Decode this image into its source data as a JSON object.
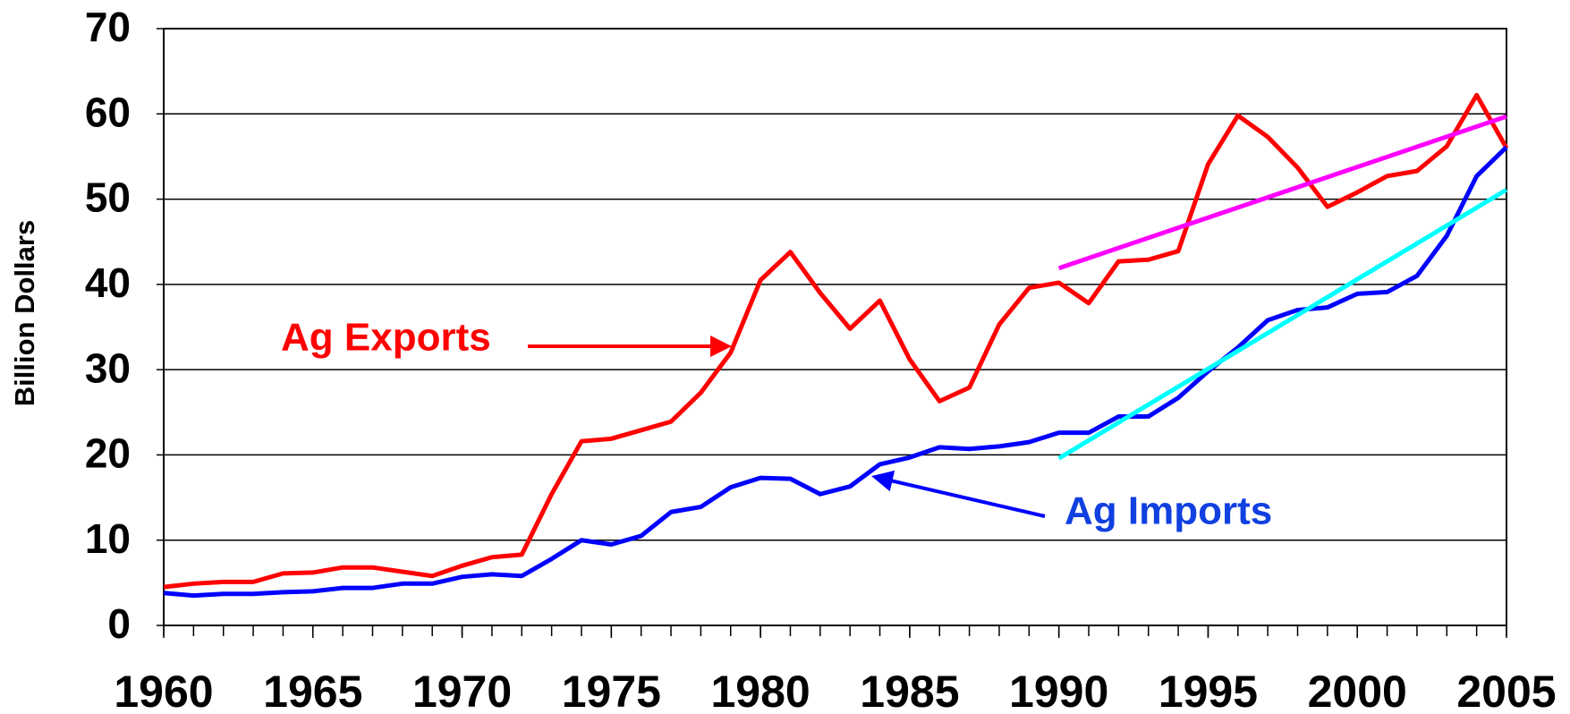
{
  "chart_data": {
    "type": "line",
    "y_label": "Billion Dollars",
    "x": [
      1960,
      1961,
      1962,
      1963,
      1964,
      1965,
      1966,
      1967,
      1968,
      1969,
      1970,
      1971,
      1972,
      1973,
      1974,
      1975,
      1976,
      1977,
      1978,
      1979,
      1980,
      1981,
      1982,
      1983,
      1984,
      1985,
      1986,
      1987,
      1988,
      1989,
      1990,
      1991,
      1992,
      1993,
      1994,
      1995,
      1996,
      1997,
      1998,
      1999,
      2000,
      2001,
      2002,
      2003,
      2004,
      2005
    ],
    "series": [
      {
        "name": "Ag Exports",
        "color": "#ff0000",
        "values": [
          4.5,
          4.9,
          5.1,
          5.1,
          6.1,
          6.2,
          6.8,
          6.8,
          6.3,
          5.8,
          7.0,
          8.0,
          8.3,
          15.4,
          21.6,
          21.9,
          22.9,
          23.9,
          27.3,
          32.0,
          40.5,
          43.8,
          39.0,
          34.8,
          38.1,
          31.2,
          26.3,
          27.9,
          35.3,
          39.6,
          40.2,
          37.8,
          42.7,
          42.9,
          43.9,
          54.1,
          59.8,
          57.3,
          53.7,
          49.1,
          50.8,
          52.7,
          53.3,
          56.2,
          62.2,
          56.0
        ]
      },
      {
        "name": "Ag Imports",
        "color": "#0000ff",
        "values": [
          3.8,
          3.5,
          3.7,
          3.7,
          3.9,
          4.0,
          4.4,
          4.4,
          4.9,
          4.9,
          5.7,
          6.0,
          5.8,
          7.8,
          10.0,
          9.5,
          10.5,
          13.3,
          13.9,
          16.2,
          17.3,
          17.2,
          15.4,
          16.3,
          18.9,
          19.7,
          20.9,
          20.7,
          21.0,
          21.5,
          22.6,
          22.6,
          24.5,
          24.5,
          26.7,
          29.8,
          32.6,
          35.8,
          37.0,
          37.3,
          38.9,
          39.1,
          41.0,
          45.7,
          52.7,
          56.1
        ]
      },
      {
        "color": "#ff00ff",
        "x": [
          1990,
          2005
        ],
        "values": [
          41.9,
          59.7
        ]
      },
      {
        "color": "#00ffff",
        "x": [
          1990,
          2005
        ],
        "values": [
          19.6,
          51.1
        ]
      }
    ],
    "xlim": [
      1960,
      2005
    ],
    "xticks": [
      1960,
      1965,
      1970,
      1975,
      1980,
      1985,
      1990,
      1995,
      2000,
      2005
    ],
    "ylim": [
      0,
      70
    ],
    "yticks": [
      0,
      10,
      20,
      30,
      40,
      50,
      60,
      70
    ],
    "grid": true
  }
}
